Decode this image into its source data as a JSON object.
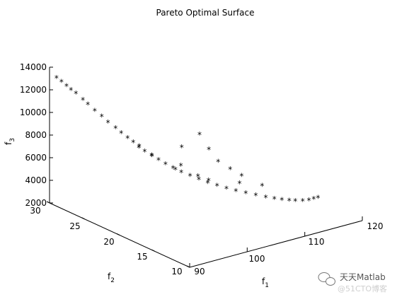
{
  "chart_data": {
    "type": "scatter",
    "title": "Pareto Optimal Surface",
    "marker": "*",
    "color": "#0000ff",
    "axes": {
      "f1": {
        "label": "f",
        "sub": "1",
        "range": [
          90,
          120
        ],
        "ticks": [
          "90",
          "100",
          "110",
          "120"
        ]
      },
      "f2": {
        "label": "f",
        "sub": "2",
        "range": [
          10,
          30
        ],
        "ticks": [
          "10",
          "15",
          "20",
          "25",
          "30"
        ]
      },
      "f3": {
        "label": "f",
        "sub": "3",
        "range": [
          2000,
          14000
        ],
        "ticks": [
          "2000",
          "4000",
          "6000",
          "8000",
          "10000",
          "12000",
          "14000"
        ]
      }
    },
    "points": [
      {
        "f1": 90.0,
        "f2": 29.0,
        "f3": 13300
      },
      {
        "f1": 90.5,
        "f2": 28.7,
        "f3": 12950
      },
      {
        "f1": 91.0,
        "f2": 28.4,
        "f3": 12600
      },
      {
        "f1": 91.4,
        "f2": 28.1,
        "f3": 12300
      },
      {
        "f1": 91.9,
        "f2": 27.8,
        "f3": 12000
      },
      {
        "f1": 92.5,
        "f2": 27.3,
        "f3": 11500
      },
      {
        "f1": 93.0,
        "f2": 27.0,
        "f3": 11100
      },
      {
        "f1": 93.6,
        "f2": 26.5,
        "f3": 10600
      },
      {
        "f1": 94.2,
        "f2": 26.0,
        "f3": 10150
      },
      {
        "f1": 94.8,
        "f2": 25.6,
        "f3": 9650
      },
      {
        "f1": 95.5,
        "f2": 25.1,
        "f3": 9200
      },
      {
        "f1": 96.0,
        "f2": 24.7,
        "f3": 8800
      },
      {
        "f1": 96.5,
        "f2": 24.2,
        "f3": 8450
      },
      {
        "f1": 97.0,
        "f2": 23.8,
        "f3": 8100
      },
      {
        "f1": 97.5,
        "f2": 23.4,
        "f3": 7700
      },
      {
        "f1": 98.0,
        "f2": 23.0,
        "f3": 7400
      },
      {
        "f1": 98.6,
        "f2": 22.5,
        "f3": 7100
      },
      {
        "f1": 99.2,
        "f2": 22.0,
        "f3": 6750
      },
      {
        "f1": 99.8,
        "f2": 21.5,
        "f3": 6450
      },
      {
        "f1": 100.5,
        "f2": 21.0,
        "f3": 6150
      },
      {
        "f1": 101.2,
        "f2": 20.4,
        "f3": 5850
      },
      {
        "f1": 102.0,
        "f2": 19.8,
        "f3": 5600
      },
      {
        "f1": 102.8,
        "f2": 19.2,
        "f3": 5350
      },
      {
        "f1": 103.6,
        "f2": 18.6,
        "f3": 5100
      },
      {
        "f1": 104.5,
        "f2": 18.0,
        "f3": 4900
      },
      {
        "f1": 105.4,
        "f2": 17.4,
        "f3": 4700
      },
      {
        "f1": 106.3,
        "f2": 16.8,
        "f3": 4500
      },
      {
        "f1": 107.3,
        "f2": 16.2,
        "f3": 4350
      },
      {
        "f1": 108.3,
        "f2": 15.6,
        "f3": 4200
      },
      {
        "f1": 109.3,
        "f2": 15.0,
        "f3": 4050
      },
      {
        "f1": 110.2,
        "f2": 14.5,
        "f3": 3950
      },
      {
        "f1": 111.0,
        "f2": 14.1,
        "f3": 3850
      },
      {
        "f1": 111.8,
        "f2": 13.7,
        "f3": 3800
      },
      {
        "f1": 112.5,
        "f2": 13.4,
        "f3": 3750
      },
      {
        "f1": 113.3,
        "f2": 13.0,
        "f3": 3750
      },
      {
        "f1": 114.0,
        "f2": 12.7,
        "f3": 3800
      },
      {
        "f1": 114.6,
        "f2": 12.5,
        "f3": 3900
      },
      {
        "f1": 115.1,
        "f2": 12.3,
        "f3": 4000
      },
      {
        "f1": 97.3,
        "f2": 23.2,
        "f3": 7900
      },
      {
        "f1": 98.8,
        "f2": 22.6,
        "f3": 7000
      },
      {
        "f1": 100.8,
        "f2": 20.9,
        "f3": 6000
      },
      {
        "f1": 103.0,
        "f2": 19.5,
        "f3": 5500
      },
      {
        "f1": 101.5,
        "f2": 20.7,
        "f3": 6300
      },
      {
        "f1": 104.0,
        "f2": 18.8,
        "f3": 5200
      },
      {
        "f1": 102.0,
        "f2": 21.0,
        "f3": 7800
      },
      {
        "f1": 104.5,
        "f2": 20.5,
        "f3": 8700
      },
      {
        "f1": 105.5,
        "f2": 20.0,
        "f3": 7400
      },
      {
        "f1": 106.5,
        "f2": 19.5,
        "f3": 6300
      },
      {
        "f1": 108.0,
        "f2": 19.0,
        "f3": 5600
      },
      {
        "f1": 109.0,
        "f2": 18.2,
        "f3": 5100
      },
      {
        "f1": 107.8,
        "f2": 17.5,
        "f3": 4800
      },
      {
        "f1": 110.5,
        "f2": 16.5,
        "f3": 4500
      }
    ]
  },
  "watermark": {
    "brand": "天天Matlab",
    "site": "@51CTO博客"
  }
}
